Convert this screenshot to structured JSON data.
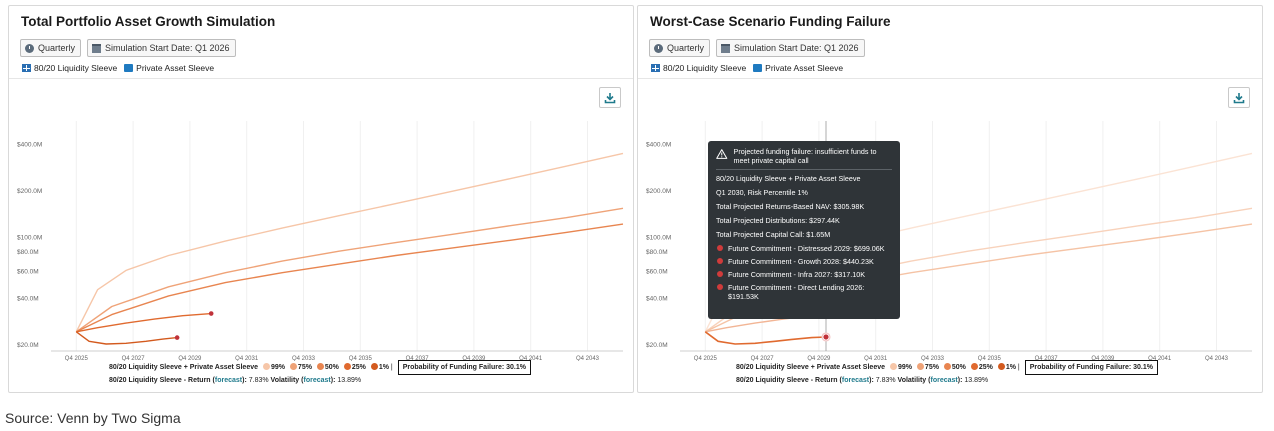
{
  "panels": [
    {
      "title": "Total Portfolio Asset Growth Simulation",
      "frequency_label": "Quarterly",
      "start_label": "Simulation Start Date: Q1 2026",
      "legend_liquidity": "80/20 Liquidity Sleeve",
      "legend_private": "Private Asset Sleeve",
      "footer": {
        "combo_left": "80/20 Liquidity Sleeve",
        "plus": "+",
        "combo_right": "Private Asset Sleeve",
        "percentiles": [
          "99%",
          "75%",
          "50%",
          "25%",
          "1%"
        ],
        "separator": "|",
        "probability_failure": "Probability of Funding Failure: 30.1%",
        "stats_name": "80/20 Liquidity Sleeve",
        "dash": "-",
        "return_label": "Return",
        "forecast_label": "forecast",
        "return_value": "7.83%",
        "volatility_label": "Volatility",
        "volatility_value": "13.89%"
      }
    },
    {
      "title": "Worst-Case Scenario Funding Failure",
      "frequency_label": "Quarterly",
      "start_label": "Simulation Start Date: Q1 2026",
      "legend_liquidity": "80/20 Liquidity Sleeve",
      "legend_private": "Private Asset Sleeve",
      "footer": {
        "combo_left": "80/20 Liquidity Sleeve",
        "plus": "+",
        "combo_right": "Private Asset Sleeve",
        "percentiles": [
          "99%",
          "75%",
          "50%",
          "25%",
          "1%"
        ],
        "separator": "|",
        "probability_failure": "Probability of Funding Failure: 30.1%",
        "stats_name": "80/20 Liquidity Sleeve",
        "dash": "-",
        "return_label": "Return",
        "forecast_label": "forecast",
        "return_value": "7.83%",
        "volatility_label": "Volatility",
        "volatility_value": "13.89%"
      }
    }
  ],
  "tooltip": {
    "header": "Projected funding failure: insufficient funds to meet private capital call",
    "line1": "80/20 Liquidity Sleeve + Private Asset Sleeve",
    "line2": "Q1 2030, Risk Percentile 1%",
    "nav": "Total Projected Returns-Based NAV: $305.98K",
    "distributions": "Total Projected Distributions: $297.44K",
    "capital_call": "Total Projected Capital Call: $1.65M",
    "commitments": [
      "Future Commitment - Distressed 2029: $699.06K",
      "Future Commitment - Growth 2028: $440.23K",
      "Future Commitment - Infra 2027: $317.10K",
      "Future Commitment - Direct Lending 2026: $191.53K"
    ]
  },
  "source": "Source: Venn by Two Sigma",
  "chart_data": [
    {
      "type": "line",
      "scale": "log",
      "y_tick_labels": [
        "$20.0M",
        "$40.0M",
        "$60.0M",
        "$80.0M",
        "$100.0M",
        "$200.0M",
        "$400.0M"
      ],
      "y_ticks": [
        20,
        40,
        60,
        80,
        100,
        200,
        400
      ],
      "ylim": [
        18,
        560
      ],
      "x_tick_labels": [
        "Q4 2025",
        "Q4 2027",
        "Q4 2029",
        "Q4 2031",
        "Q4 2033",
        "Q4 2035",
        "Q4 2037",
        "Q4 2039",
        "Q4 2041",
        "Q4 2043"
      ],
      "x_ticks": [
        2025.75,
        2027.75,
        2029.75,
        2031.75,
        2033.75,
        2035.75,
        2037.75,
        2039.75,
        2041.75,
        2043.75
      ],
      "xlim": [
        2025.0,
        2045.0
      ],
      "series": [
        {
          "name": "99%",
          "color": "#f6c6a8",
          "x": [
            2025.75,
            2026.5,
            2027.5,
            2029,
            2031,
            2033,
            2035,
            2037,
            2039,
            2041,
            2043,
            2045
          ],
          "values": [
            24,
            45,
            60,
            75,
            93,
            113,
            136,
            163,
            196,
            236,
            285,
            345
          ]
        },
        {
          "name": "75%",
          "color": "#efa378",
          "x": [
            2025.75,
            2027,
            2029,
            2031,
            2033,
            2035,
            2037,
            2039,
            2041,
            2043,
            2045
          ],
          "values": [
            24,
            35,
            47,
            58,
            69,
            80,
            91,
            103,
            117,
            132,
            152
          ]
        },
        {
          "name": "50%",
          "color": "#e88550",
          "x": [
            2025.75,
            2027,
            2029,
            2031,
            2033,
            2035,
            2037,
            2039,
            2041,
            2043,
            2045
          ],
          "values": [
            24,
            31,
            41,
            50,
            58,
            66,
            75,
            84,
            94,
            106,
            120
          ]
        },
        {
          "name": "25%",
          "color": "#e06a2f",
          "x": [
            2025.75,
            2026.5,
            2027.5,
            2028.5,
            2029.5,
            2030.5
          ],
          "values": [
            24,
            25.5,
            27.3,
            29,
            30.5,
            31.5
          ],
          "end_marker": true
        },
        {
          "name": "1%",
          "color": "#d35a1e",
          "x": [
            2025.75,
            2026.2,
            2026.8,
            2027.5,
            2028.2,
            2028.8,
            2029.3
          ],
          "values": [
            24,
            20.8,
            20,
            20.2,
            20.8,
            21.5,
            22.0
          ],
          "end_marker": true
        }
      ]
    },
    {
      "type": "line",
      "scale": "log",
      "y_tick_labels": [
        "$20.0M",
        "$40.0M",
        "$60.0M",
        "$80.0M",
        "$100.0M",
        "$200.0M",
        "$400.0M"
      ],
      "y_ticks": [
        20,
        40,
        60,
        80,
        100,
        200,
        400
      ],
      "ylim": [
        18,
        560
      ],
      "x_tick_labels": [
        "Q4 2025",
        "Q4 2027",
        "Q4 2029",
        "Q4 2031",
        "Q4 2033",
        "Q4 2035",
        "Q4 2037",
        "Q4 2039",
        "Q4 2041",
        "Q4 2043"
      ],
      "x_ticks": [
        2025.75,
        2027.75,
        2029.75,
        2031.75,
        2033.75,
        2035.75,
        2037.75,
        2039.75,
        2041.75,
        2043.75
      ],
      "xlim": [
        2025.0,
        2045.0
      ],
      "highlight_x": 2030.0,
      "series": [
        {
          "name": "99%",
          "color": "#fbe3d4",
          "x": [
            2025.75,
            2026.5,
            2027.5,
            2029,
            2031,
            2033,
            2035,
            2037,
            2039,
            2041,
            2043,
            2045
          ],
          "values": [
            24,
            45,
            60,
            75,
            93,
            113,
            136,
            163,
            196,
            236,
            285,
            345
          ]
        },
        {
          "name": "75%",
          "color": "#f8d2bb",
          "x": [
            2025.75,
            2027,
            2029,
            2031,
            2033,
            2035,
            2037,
            2039,
            2041,
            2043,
            2045
          ],
          "values": [
            24,
            35,
            47,
            58,
            69,
            80,
            91,
            103,
            117,
            132,
            152
          ]
        },
        {
          "name": "50%",
          "color": "#f5c3a5",
          "x": [
            2025.75,
            2027,
            2029,
            2031,
            2033,
            2035,
            2037,
            2039,
            2041,
            2043,
            2045
          ],
          "values": [
            24,
            31,
            41,
            50,
            58,
            66,
            75,
            84,
            94,
            106,
            120
          ]
        },
        {
          "name": "25%",
          "color": "#f2b595",
          "x": [
            2025.75,
            2026.5,
            2027.5,
            2028.5,
            2029.5,
            2030.5
          ],
          "values": [
            24,
            25.5,
            27.3,
            29,
            30.5,
            31.5
          ]
        },
        {
          "name": "1%",
          "color": "#e06a2f",
          "x": [
            2025.75,
            2026.2,
            2026.8,
            2027.5,
            2028.2,
            2028.8,
            2029.5,
            2030.0
          ],
          "values": [
            24,
            20.8,
            20,
            20.2,
            20.8,
            21.4,
            22.0,
            22.2
          ],
          "end_marker": true,
          "highlight": true
        }
      ]
    }
  ],
  "colors": {
    "p99": "#f6c6a8",
    "p75": "#efa378",
    "p50": "#e88550",
    "p25": "#e06a2f",
    "p1": "#d35a1e",
    "marker": "#c0323a",
    "tooltip_bg": "#2f3438"
  }
}
